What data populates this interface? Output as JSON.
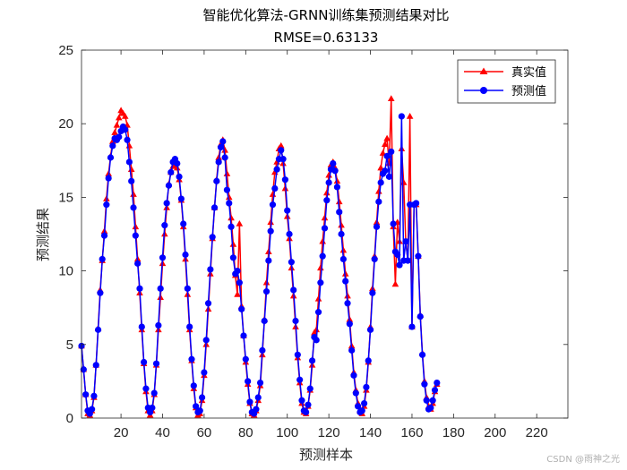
{
  "watermark": "CSDN @雨神之光",
  "chart_data": {
    "type": "line",
    "title": "智能优化算法-GRNN训练集预测结果对比",
    "subtitle": "RMSE=0.63133",
    "xlabel": "预测样本",
    "ylabel": "预测结果",
    "xlim": [
      1,
      235
    ],
    "ylim": [
      0,
      25
    ],
    "xticks": [
      20,
      40,
      60,
      80,
      100,
      120,
      140,
      160,
      180,
      200,
      220
    ],
    "yticks": [
      0,
      5,
      10,
      15,
      20,
      25
    ],
    "grid": false,
    "legend_position": "top-right",
    "colors": {
      "real": "#ff0000",
      "pred": "#0000ff"
    },
    "series": [
      {
        "name": "真实值",
        "marker": "triangle",
        "values": [
          4.9,
          3.3,
          1.6,
          0.3,
          0.2,
          0.5,
          1.4,
          3.6,
          6.1,
          8.7,
          10.7,
          12.7,
          14.9,
          16.6,
          17.8,
          18.8,
          19.4,
          19.9,
          20.4,
          20.9,
          20.7,
          20.5,
          19.9,
          18.5,
          16.9,
          15.2,
          13.0,
          10.8,
          8.5,
          6.0,
          3.7,
          1.8,
          0.5,
          0.2,
          0.5,
          1.6,
          3.6,
          6.0,
          8.2,
          10.5,
          12.5,
          14.3,
          15.9,
          16.7,
          17.1,
          17.2,
          17.0,
          16.2,
          14.8,
          13.0,
          10.8,
          8.4,
          6.0,
          3.9,
          2.0,
          0.7,
          0.2,
          0.3,
          1.2,
          2.9,
          5.0,
          7.4,
          9.8,
          12.2,
          14.3,
          16.2,
          17.7,
          18.6,
          18.9,
          18.2,
          16.6,
          15.0,
          13.6,
          11.8,
          9.7,
          8.4,
          13.2,
          7.6,
          5.6,
          3.8,
          2.3,
          1.0,
          0.3,
          0.2,
          0.5,
          1.2,
          2.2,
          4.3,
          6.7,
          9.2,
          11.3,
          13.3,
          15.2,
          16.7,
          17.4,
          18.3,
          18.5,
          17.3,
          15.6,
          13.7,
          12.2,
          10.2,
          8.3,
          6.2,
          4.1,
          2.4,
          1.0,
          0.4,
          0.3,
          0.8,
          1.9,
          3.6,
          5.8,
          6.0,
          8.1,
          10.2,
          12.0,
          13.6,
          15.3,
          16.5,
          17.2,
          17.4,
          17.0,
          16.1,
          14.7,
          13.1,
          11.4,
          9.8,
          8.3,
          6.7,
          4.9,
          3.1,
          1.9,
          1.0,
          0.5,
          0.3,
          0.8,
          1.9,
          3.8,
          6.2,
          8.8,
          11.0,
          13.3,
          15.4,
          17.0,
          18.0,
          18.6,
          19.0,
          17.3,
          21.7,
          13.0,
          9.1,
          13.3,
          12.0,
          18.3,
          16.0,
          12.0,
          10.7,
          20.5,
          6.2,
          14.5,
          14.5,
          11.0,
          7.0,
          4.4,
          2.5,
          1.4,
          0.8,
          0.6,
          1.0,
          1.8,
          2.3
        ],
        "x_start": 1
      },
      {
        "name": "预测值",
        "marker": "circle",
        "values": [
          4.9,
          3.3,
          1.6,
          0.5,
          0.3,
          0.6,
          1.5,
          3.6,
          6.0,
          8.5,
          10.8,
          12.4,
          14.5,
          16.3,
          17.7,
          18.5,
          19.0,
          18.9,
          19.1,
          19.5,
          19.8,
          19.6,
          18.9,
          17.4,
          16.1,
          14.3,
          12.4,
          10.5,
          8.8,
          6.2,
          3.8,
          2.0,
          0.7,
          0.4,
          0.7,
          1.7,
          3.7,
          6.3,
          8.8,
          10.9,
          13.1,
          14.6,
          15.8,
          16.7,
          17.4,
          17.6,
          17.3,
          16.4,
          14.9,
          13.2,
          11.1,
          8.8,
          6.2,
          4.0,
          2.2,
          0.8,
          0.4,
          0.5,
          1.4,
          3.1,
          5.3,
          7.8,
          10.1,
          12.3,
          14.3,
          16.1,
          17.4,
          18.4,
          18.8,
          17.7,
          15.5,
          14.6,
          13.0,
          10.9,
          9.8,
          10.0,
          9.2,
          7.4,
          5.6,
          4.0,
          2.5,
          1.1,
          0.4,
          0.3,
          0.6,
          1.4,
          2.4,
          4.6,
          6.6,
          8.6,
          10.7,
          12.7,
          14.5,
          15.6,
          16.9,
          17.6,
          18.2,
          17.6,
          16.2,
          14.1,
          12.5,
          10.6,
          8.7,
          6.6,
          4.3,
          2.6,
          1.2,
          0.5,
          0.4,
          0.9,
          2.0,
          3.9,
          5.5,
          5.3,
          7.2,
          9.2,
          11.0,
          12.9,
          14.8,
          16.0,
          16.9,
          17.3,
          16.8,
          15.7,
          14.0,
          12.5,
          10.8,
          9.3,
          7.8,
          6.4,
          4.6,
          2.9,
          1.7,
          0.8,
          0.4,
          0.5,
          1.0,
          2.1,
          3.9,
          6.0,
          8.5,
          10.8,
          13.0,
          14.7,
          16.0,
          16.6,
          16.8,
          17.8,
          16.4,
          18.1,
          13.2,
          11.3,
          11.1,
          10.4,
          20.5,
          10.7,
          12.0,
          10.7,
          14.5,
          6.2,
          14.5,
          14.6,
          11.0,
          6.9,
          4.3,
          2.3,
          1.2,
          0.6,
          0.7,
          1.2,
          1.9,
          2.4
        ],
        "x_start": 1
      }
    ]
  }
}
